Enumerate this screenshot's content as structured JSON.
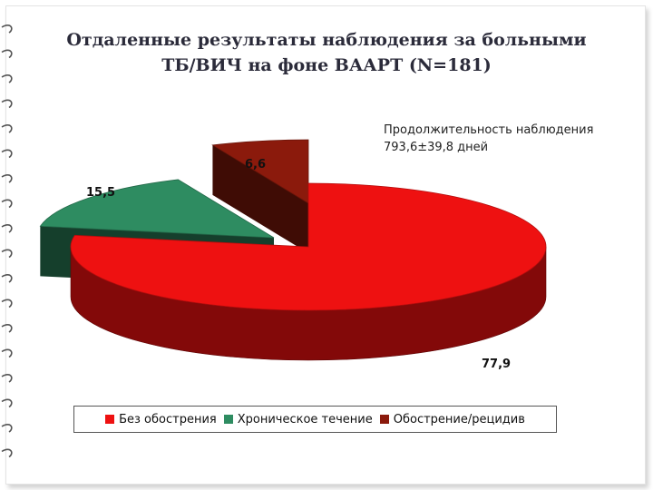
{
  "title": {
    "line1": "Отдаленные результаты наблюдения за больными",
    "line2": "ТБ/ВИЧ на фоне ВААРТ (N=181)"
  },
  "annotation": {
    "line1": "Продолжительность наблюдения",
    "line2": "793,6±39,8 дней"
  },
  "chart_data": {
    "type": "pie",
    "style": "3d-exploded",
    "categories": [
      "Без обострения",
      "Хроническое течение",
      "Обострение/рецидив"
    ],
    "values": [
      77.9,
      15.5,
      6.6
    ],
    "value_labels": [
      "77,9",
      "15,5",
      "6,6"
    ],
    "colors": [
      "#ee1111",
      "#2e8c61",
      "#8b1a0c"
    ],
    "legend_position": "bottom"
  }
}
